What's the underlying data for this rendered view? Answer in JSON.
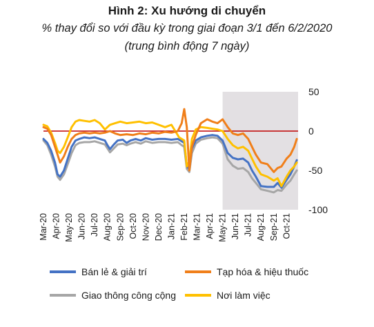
{
  "header": {
    "title": "Hình 2: Xu hướng di chuyển",
    "subtitle_line1": "% thay đổi so với đầu kỳ trong giai đoạn 3/1 đến 6/2/2020",
    "subtitle_line2": "(trung bình động 7 ngày)"
  },
  "chart_data": {
    "type": "line",
    "title": "Hình 2: Xu hướng di chuyển",
    "subtitle": "% thay đổi so với đầu kỳ trong giai đoạn 3/1 đến 6/2/2020 (trung bình động 7 ngày)",
    "xlabel": "",
    "ylabel": "",
    "y_axis_side": "right",
    "ylim": [
      -100,
      50
    ],
    "yticks": [
      50,
      0,
      -50,
      -100
    ],
    "ytick_labels": [
      "50",
      "0",
      "-50",
      "-100"
    ],
    "x_categories": [
      "Mar-20",
      "Apr-20",
      "May-20",
      "Jun-20",
      "Jul-20",
      "Aug-20",
      "Sep-20",
      "Oct-20",
      "Nov-20",
      "Dec-20",
      "Jan-21",
      "Feb-21",
      "Mar-21",
      "Apr-21",
      "May-21",
      "Jun-21",
      "Jul-21",
      "Aug-21",
      "Sep-21",
      "Oct-21"
    ],
    "x_range": [
      0,
      19.9
    ],
    "shaded_region": [
      14.0,
      19.9
    ],
    "shaded_color": "#e3e0e3",
    "zero_line_color": "#c00000",
    "grid": false,
    "legend_position": "bottom",
    "series": [
      {
        "name": "Bán lẻ & giải trí",
        "color": "#4472c4",
        "points": [
          [
            0,
            -10
          ],
          [
            0.3,
            -15
          ],
          [
            0.6,
            -25
          ],
          [
            0.9,
            -40
          ],
          [
            1.1,
            -55
          ],
          [
            1.3,
            -58
          ],
          [
            1.6,
            -50
          ],
          [
            1.9,
            -35
          ],
          [
            2.2,
            -20
          ],
          [
            2.5,
            -12
          ],
          [
            2.8,
            -10
          ],
          [
            3.2,
            -8
          ],
          [
            3.6,
            -9
          ],
          [
            4,
            -8
          ],
          [
            4.4,
            -10
          ],
          [
            4.8,
            -12
          ],
          [
            5.0,
            -18
          ],
          [
            5.2,
            -23
          ],
          [
            5.5,
            -17
          ],
          [
            5.8,
            -12
          ],
          [
            6.2,
            -11
          ],
          [
            6.5,
            -15
          ],
          [
            6.8,
            -12
          ],
          [
            7.2,
            -10
          ],
          [
            7.6,
            -12
          ],
          [
            8,
            -9
          ],
          [
            8.5,
            -11
          ],
          [
            9,
            -10
          ],
          [
            9.5,
            -10
          ],
          [
            10,
            -11
          ],
          [
            10.5,
            -10
          ],
          [
            10.8,
            -13
          ],
          [
            11.0,
            -15
          ],
          [
            11.2,
            -45
          ],
          [
            11.4,
            -48
          ],
          [
            11.6,
            -22
          ],
          [
            11.9,
            -12
          ],
          [
            12.3,
            -8
          ],
          [
            12.8,
            -6
          ],
          [
            13.2,
            -5
          ],
          [
            13.6,
            -6
          ],
          [
            14.0,
            -12
          ],
          [
            14.4,
            -28
          ],
          [
            14.8,
            -34
          ],
          [
            15.2,
            -36
          ],
          [
            15.6,
            -35
          ],
          [
            16.0,
            -40
          ],
          [
            16.3,
            -50
          ],
          [
            16.6,
            -58
          ],
          [
            17.0,
            -70
          ],
          [
            17.5,
            -71
          ],
          [
            18.0,
            -71
          ],
          [
            18.3,
            -66
          ],
          [
            18.6,
            -72
          ],
          [
            19.0,
            -62
          ],
          [
            19.3,
            -55
          ],
          [
            19.6,
            -45
          ],
          [
            19.8,
            -37
          ]
        ]
      },
      {
        "name": "Tạp hóa & hiệu thuốc",
        "color": "#f07f1a",
        "points": [
          [
            0,
            5
          ],
          [
            0.3,
            3
          ],
          [
            0.6,
            -5
          ],
          [
            0.9,
            -20
          ],
          [
            1.1,
            -30
          ],
          [
            1.3,
            -40
          ],
          [
            1.6,
            -32
          ],
          [
            1.9,
            -20
          ],
          [
            2.2,
            -10
          ],
          [
            2.5,
            -5
          ],
          [
            2.8,
            -3
          ],
          [
            3.2,
            -2
          ],
          [
            3.6,
            -3
          ],
          [
            4,
            -2
          ],
          [
            4.4,
            -3
          ],
          [
            4.8,
            -2
          ],
          [
            5.2,
            0
          ],
          [
            5.6,
            -3
          ],
          [
            6,
            -5
          ],
          [
            6.5,
            -4
          ],
          [
            7,
            -5
          ],
          [
            7.5,
            -3
          ],
          [
            8,
            -4
          ],
          [
            8.5,
            -2
          ],
          [
            9,
            -3
          ],
          [
            9.5,
            -1
          ],
          [
            10,
            -2
          ],
          [
            10.5,
            0
          ],
          [
            10.8,
            10
          ],
          [
            11.0,
            28
          ],
          [
            11.2,
            5
          ],
          [
            11.4,
            -50
          ],
          [
            11.6,
            -20
          ],
          [
            11.9,
            -5
          ],
          [
            12.3,
            10
          ],
          [
            12.8,
            15
          ],
          [
            13.2,
            12
          ],
          [
            13.6,
            10
          ],
          [
            14.0,
            15
          ],
          [
            14.4,
            5
          ],
          [
            14.8,
            -3
          ],
          [
            15.2,
            -5
          ],
          [
            15.6,
            -3
          ],
          [
            16.0,
            -10
          ],
          [
            16.3,
            -20
          ],
          [
            16.6,
            -30
          ],
          [
            17.0,
            -40
          ],
          [
            17.5,
            -42
          ],
          [
            18.0,
            -52
          ],
          [
            18.3,
            -47
          ],
          [
            18.6,
            -45
          ],
          [
            19.0,
            -35
          ],
          [
            19.3,
            -30
          ],
          [
            19.6,
            -20
          ],
          [
            19.8,
            -10
          ]
        ]
      },
      {
        "name": "Giao thông công cộng",
        "color": "#a6a6a6",
        "points": [
          [
            0,
            -12
          ],
          [
            0.3,
            -18
          ],
          [
            0.6,
            -30
          ],
          [
            0.9,
            -45
          ],
          [
            1.1,
            -58
          ],
          [
            1.3,
            -62
          ],
          [
            1.6,
            -55
          ],
          [
            1.9,
            -42
          ],
          [
            2.2,
            -28
          ],
          [
            2.5,
            -18
          ],
          [
            2.8,
            -15
          ],
          [
            3.2,
            -14
          ],
          [
            3.6,
            -14
          ],
          [
            4,
            -13
          ],
          [
            4.4,
            -15
          ],
          [
            4.8,
            -17
          ],
          [
            5.0,
            -22
          ],
          [
            5.2,
            -27
          ],
          [
            5.5,
            -22
          ],
          [
            5.8,
            -17
          ],
          [
            6.2,
            -16
          ],
          [
            6.5,
            -18
          ],
          [
            6.8,
            -16
          ],
          [
            7.2,
            -14
          ],
          [
            7.6,
            -16
          ],
          [
            8,
            -13
          ],
          [
            8.5,
            -15
          ],
          [
            9,
            -14
          ],
          [
            9.5,
            -14
          ],
          [
            10,
            -15
          ],
          [
            10.5,
            -14
          ],
          [
            10.8,
            -18
          ],
          [
            11.0,
            -20
          ],
          [
            11.2,
            -48
          ],
          [
            11.4,
            -52
          ],
          [
            11.6,
            -28
          ],
          [
            11.9,
            -16
          ],
          [
            12.3,
            -11
          ],
          [
            12.8,
            -9
          ],
          [
            13.2,
            -8
          ],
          [
            13.6,
            -9
          ],
          [
            14.0,
            -16
          ],
          [
            14.4,
            -36
          ],
          [
            14.8,
            -44
          ],
          [
            15.2,
            -48
          ],
          [
            15.6,
            -47
          ],
          [
            16.0,
            -52
          ],
          [
            16.3,
            -60
          ],
          [
            16.6,
            -66
          ],
          [
            17.0,
            -74
          ],
          [
            17.5,
            -76
          ],
          [
            18.0,
            -78
          ],
          [
            18.3,
            -75
          ],
          [
            18.6,
            -76
          ],
          [
            19.0,
            -68
          ],
          [
            19.3,
            -63
          ],
          [
            19.6,
            -55
          ],
          [
            19.8,
            -50
          ]
        ]
      },
      {
        "name": "Nơi làm việc",
        "color": "#ffc000",
        "points": [
          [
            0,
            8
          ],
          [
            0.3,
            6
          ],
          [
            0.6,
            -2
          ],
          [
            0.9,
            -15
          ],
          [
            1.1,
            -25
          ],
          [
            1.3,
            -28
          ],
          [
            1.6,
            -20
          ],
          [
            1.9,
            -8
          ],
          [
            2.2,
            5
          ],
          [
            2.5,
            12
          ],
          [
            2.8,
            14
          ],
          [
            3.2,
            13
          ],
          [
            3.6,
            12
          ],
          [
            4,
            14
          ],
          [
            4.4,
            10
          ],
          [
            4.8,
            2
          ],
          [
            5.2,
            8
          ],
          [
            5.6,
            10
          ],
          [
            6,
            12
          ],
          [
            6.5,
            10
          ],
          [
            7,
            11
          ],
          [
            7.5,
            12
          ],
          [
            8,
            10
          ],
          [
            8.5,
            11
          ],
          [
            9,
            8
          ],
          [
            9.5,
            5
          ],
          [
            10,
            8
          ],
          [
            10.3,
            0
          ],
          [
            10.6,
            -8
          ],
          [
            11.0,
            -12
          ],
          [
            11.2,
            -45
          ],
          [
            11.4,
            -38
          ],
          [
            11.6,
            -10
          ],
          [
            11.9,
            2
          ],
          [
            12.3,
            5
          ],
          [
            12.8,
            4
          ],
          [
            13.2,
            3
          ],
          [
            13.6,
            2
          ],
          [
            14.0,
            0
          ],
          [
            14.4,
            -10
          ],
          [
            14.8,
            -18
          ],
          [
            15.2,
            -22
          ],
          [
            15.6,
            -20
          ],
          [
            16.0,
            -25
          ],
          [
            16.3,
            -35
          ],
          [
            16.6,
            -45
          ],
          [
            17.0,
            -55
          ],
          [
            17.5,
            -58
          ],
          [
            18.0,
            -63
          ],
          [
            18.3,
            -60
          ],
          [
            18.6,
            -70
          ],
          [
            19.0,
            -58
          ],
          [
            19.3,
            -50
          ],
          [
            19.6,
            -45
          ],
          [
            19.8,
            -40
          ]
        ]
      }
    ]
  }
}
